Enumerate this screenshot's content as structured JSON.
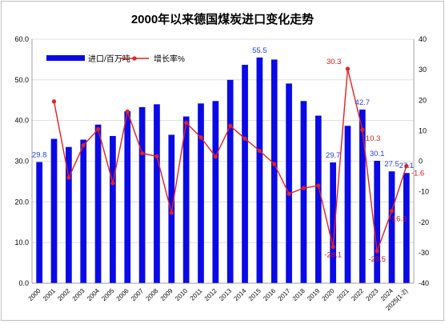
{
  "chart_data": {
    "type": "bar+line",
    "title": "2000年以来德国煤炭进口变化走势",
    "categories": [
      "2000",
      "2001",
      "2002",
      "2003",
      "2004",
      "2005",
      "2006",
      "2007",
      "2008",
      "2009",
      "2010",
      "2011",
      "2012",
      "2013",
      "2014",
      "2015",
      "2016",
      "2017",
      "2018",
      "2019",
      "2020",
      "2021",
      "2022",
      "2023",
      "2024",
      "2025(1-2)"
    ],
    "y_left": {
      "min": 0,
      "max": 60,
      "step": 10,
      "format": "0.0"
    },
    "y_right": {
      "min": -40,
      "max": 40,
      "step": 10,
      "format": "0"
    },
    "grid": true,
    "legend_position": "top-left",
    "series": [
      {
        "name": "进口/百万吨",
        "type": "bar",
        "axis": "left",
        "color": "#0a0ae6",
        "values": [
          29.8,
          35.5,
          33.5,
          35.3,
          39.0,
          36.2,
          42.3,
          43.3,
          44.0,
          36.5,
          41.0,
          44.2,
          44.8,
          50.0,
          53.7,
          55.5,
          55.0,
          49.1,
          44.8,
          41.2,
          29.7,
          38.7,
          42.7,
          30.1,
          27.5,
          27.1
        ],
        "labels": [
          "29.8",
          "",
          "",
          "",
          "",
          "",
          "",
          "",
          "",
          "",
          "",
          "",
          "",
          "",
          "",
          "55.5",
          "",
          "",
          "",
          "",
          "29.7",
          "",
          "42.7",
          "30.1",
          "27.5",
          "27.1"
        ]
      },
      {
        "name": "增长率%",
        "type": "line",
        "axis": "right",
        "color": "#e62020",
        "values": [
          null,
          19.6,
          -5.4,
          5.2,
          10.5,
          -7.2,
          16.3,
          2.6,
          1.6,
          -16.9,
          12.6,
          7.8,
          1.5,
          11.6,
          7.4,
          3.4,
          -0.9,
          -10.7,
          -8.8,
          -8.0,
          -28.1,
          30.3,
          10.3,
          -29.5,
          -16.3,
          -1.6
        ],
        "labels": [
          "",
          "",
          "",
          "",
          "",
          "",
          "",
          "",
          "",
          "",
          "",
          "",
          "",
          "",
          "",
          "",
          "",
          "",
          "",
          "",
          "-28.1",
          "30.3",
          "10.3",
          "-29.5",
          "-16.3",
          "-1.6"
        ]
      }
    ]
  }
}
